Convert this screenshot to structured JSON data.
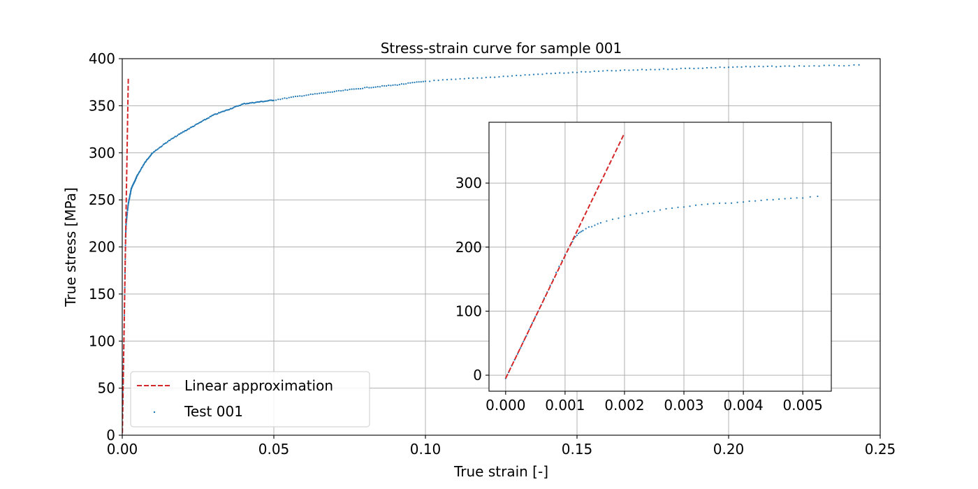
{
  "chart_data": [
    {
      "type": "scatter",
      "title": "Stress-strain curve for sample 001",
      "xlabel": "True strain [-]",
      "ylabel": "True stress [MPa]",
      "xlim": [
        0.0,
        0.25
      ],
      "ylim": [
        0,
        400
      ],
      "xticks": [
        0.0,
        0.05,
        0.1,
        0.15,
        0.2,
        0.25
      ],
      "xtick_labels": [
        "0.00",
        "0.05",
        "0.10",
        "0.15",
        "0.20",
        "0.25"
      ],
      "yticks": [
        0,
        50,
        100,
        150,
        200,
        250,
        300,
        350,
        400
      ],
      "ytick_labels": [
        "0",
        "50",
        "100",
        "150",
        "200",
        "250",
        "300",
        "350",
        "400"
      ],
      "grid": true,
      "legend": "lower-left",
      "series": [
        {
          "name": "Linear approximation",
          "kind": "line",
          "style": "dashed",
          "color": "#d62728",
          "x": [
            0.0,
            0.002
          ],
          "y": [
            -5,
            380
          ]
        },
        {
          "name": "Test 001",
          "kind": "scatter",
          "color": "#1f77b4",
          "x": [
            0.0,
            0.0003,
            0.0006,
            0.0009,
            0.0011,
            0.0013,
            0.0015,
            0.002,
            0.0025,
            0.003,
            0.004,
            0.005,
            0.0075,
            0.01,
            0.015,
            0.02,
            0.025,
            0.03,
            0.035,
            0.04,
            0.045,
            0.05,
            0.06,
            0.07,
            0.08,
            0.09,
            0.1,
            0.12,
            0.14,
            0.16,
            0.18,
            0.2,
            0.22,
            0.243
          ],
          "y": [
            20,
            60,
            110,
            170,
            210,
            226,
            232,
            246,
            254,
            262,
            269,
            276,
            290,
            300,
            312,
            322,
            331,
            340,
            346,
            352,
            354,
            356,
            361,
            365,
            369,
            372,
            376,
            380,
            384,
            387,
            389,
            391,
            392,
            393
          ]
        }
      ]
    },
    {
      "type": "scatter",
      "title": "",
      "xlabel": "",
      "ylabel": "",
      "xlim": [
        -0.00028,
        0.00548
      ],
      "ylim": [
        -25,
        395
      ],
      "xticks": [
        0.0,
        0.001,
        0.002,
        0.003,
        0.004,
        0.005
      ],
      "xtick_labels": [
        "0.000",
        "0.001",
        "0.002",
        "0.003",
        "0.004",
        "0.005"
      ],
      "yticks": [
        0,
        100,
        200,
        300
      ],
      "ytick_labels": [
        "0",
        "100",
        "200",
        "300"
      ],
      "grid": true,
      "series": [
        {
          "name": "",
          "kind": "line",
          "style": "dashed",
          "color": "#d62728",
          "x": [
            0.0,
            0.002
          ],
          "y": [
            -5,
            378
          ]
        },
        {
          "name": "",
          "kind": "scatter",
          "color": "#1f77b4",
          "x": [
            0.0,
            0.0001,
            0.0002,
            0.0003,
            0.0004,
            0.0005,
            0.0006,
            0.0007,
            0.0008,
            0.0009,
            0.001,
            0.0011,
            0.00115,
            0.0012,
            0.00125,
            0.0013,
            0.0014,
            0.0015,
            0.0016,
            0.0018,
            0.002,
            0.0022,
            0.0024,
            0.0026,
            0.0028,
            0.003,
            0.0032,
            0.0034,
            0.0036,
            0.0038,
            0.004,
            0.0042,
            0.0044,
            0.0046,
            0.0048,
            0.005,
            0.00525
          ],
          "y": [
            -5,
            14,
            33,
            52,
            72,
            91,
            110,
            130,
            150,
            170,
            188,
            205,
            213,
            219,
            223,
            226,
            231,
            234,
            238,
            243,
            248,
            252,
            255,
            258,
            261,
            263,
            265,
            267,
            268,
            269,
            271,
            272,
            274,
            275,
            276,
            277,
            279
          ]
        }
      ]
    }
  ]
}
